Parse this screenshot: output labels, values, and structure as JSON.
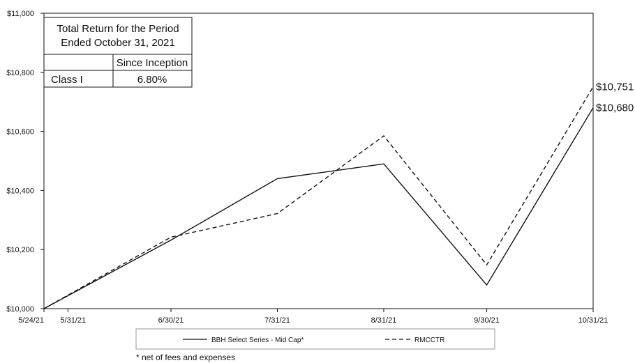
{
  "chart_data": {
    "type": "line",
    "x_ticks": [
      "5/24/21",
      "5/31/21",
      "6/30/21",
      "7/31/21",
      "8/31/21",
      "9/30/21",
      "10/31/21"
    ],
    "x_dates": [
      "2021-05-24",
      "2021-05-31",
      "2021-06-30",
      "2021-07-31",
      "2021-08-31",
      "2021-09-30",
      "2021-10-31"
    ],
    "ylim": [
      10000,
      11000
    ],
    "y_ticks": [
      "$10,000",
      "$10,200",
      "$10,400",
      "$10,600",
      "$10,800",
      "$11,000"
    ],
    "y_tick_values": [
      10000,
      10200,
      10400,
      10600,
      10800,
      11000
    ],
    "series": [
      {
        "name": "BBH Select Series - Mid Cap*",
        "style": "solid",
        "x": [
          "2021-05-24",
          "2021-06-30",
          "2021-07-31",
          "2021-08-31",
          "2021-09-30",
          "2021-10-31"
        ],
        "values": [
          10000,
          10232,
          10440,
          10490,
          10080,
          10680
        ],
        "end_label": "$10,680"
      },
      {
        "name": "RMCCTR",
        "style": "dashed",
        "x": [
          "2021-05-24",
          "2021-06-30",
          "2021-07-31",
          "2021-08-31",
          "2021-09-30",
          "2021-10-31"
        ],
        "values": [
          10000,
          10242,
          10322,
          10585,
          10148,
          10751
        ],
        "end_label": "$10,751"
      }
    ],
    "grid": false,
    "legend": "bottom",
    "table": {
      "title_line1": "Total Return for the Period",
      "title_line2": "Ended October 31, 2021",
      "column_header": "Since Inception",
      "row_label": "Class I",
      "row_value": "6.80%"
    },
    "footnote": "* net of fees and expenses"
  }
}
